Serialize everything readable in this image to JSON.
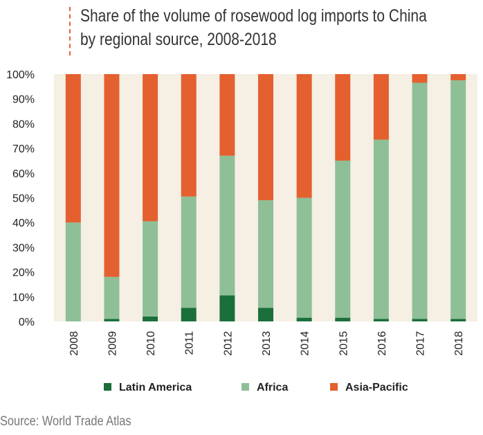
{
  "title_lines": [
    "Share of the volume of rosewood log imports to China",
    "by regional source, 2008-2018"
  ],
  "source": "Source: World Trade Atlas",
  "colors": {
    "latin_america": "#1a6f3a",
    "africa": "#8fbf97",
    "asia_pacific": "#e4602f",
    "plot_bg": "#f5efe4",
    "title_rule": "#e8603c"
  },
  "chart_data": {
    "type": "bar",
    "stacked": true,
    "categories": [
      "2008",
      "2009",
      "2010",
      "2011",
      "2012",
      "2013",
      "2014",
      "2015",
      "2016",
      "2017",
      "2018"
    ],
    "series": [
      {
        "name": "Latin America",
        "color_key": "latin_america",
        "values": [
          0,
          1,
          2,
          5.5,
          10.5,
          5.5,
          1.5,
          1.5,
          1,
          1,
          1
        ]
      },
      {
        "name": "Africa",
        "color_key": "africa",
        "values": [
          40,
          17,
          38.5,
          45,
          56.5,
          43.5,
          48.5,
          63.5,
          72.5,
          95.5,
          96.5
        ]
      },
      {
        "name": "Asia-Pacific",
        "color_key": "asia_pacific",
        "values": [
          60,
          82,
          59.5,
          49.5,
          33,
          51,
          50,
          35,
          26.5,
          3.5,
          2.5
        ]
      }
    ],
    "title": "Share of the volume of rosewood log imports to China by regional source, 2008-2018",
    "xlabel": "",
    "ylabel": "",
    "ylim": [
      0,
      100
    ],
    "yticks": [
      "0%",
      "10%",
      "20%",
      "30%",
      "40%",
      "50%",
      "60%",
      "70%",
      "80%",
      "90%",
      "100%"
    ],
    "legend_position": "bottom"
  }
}
